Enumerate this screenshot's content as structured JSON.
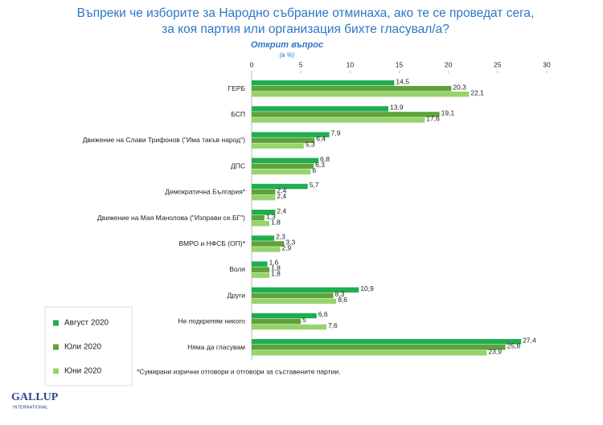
{
  "chart_data": {
    "type": "hbar",
    "title_lines": [
      "Въпреки че изборите за Народно събрание отминаха, ако те се проведат сега,",
      "за коя партия или организация бихте гласувал/а?"
    ],
    "subtitle": "Открит въпрос",
    "unit_label": "(в %)",
    "categories": [
      "ГЕРБ",
      "БСП",
      "Движение на Слави Трифонов (\"Има такъв народ\")",
      "ДПС",
      "Демократична България*",
      "Движение на Мая Манолова (\"Изправи се.БГ\")",
      "ВМРО и НФСБ (ОП)*",
      "Воля",
      "Други",
      "Не подкрепям никого",
      "Няма да гласувам"
    ],
    "series": [
      {
        "name": "Август 2020",
        "color": "#1fae4f",
        "values": [
          14.5,
          13.9,
          7.9,
          6.8,
          5.7,
          2.4,
          2.3,
          1.6,
          10.9,
          6.6,
          27.4
        ],
        "value_labels": [
          "14,5",
          "13,9",
          "7,9",
          "6,8",
          "5,7",
          "2,4",
          "2,3",
          "1,6",
          "10,9",
          "6,6",
          "27,4"
        ]
      },
      {
        "name": "Юли 2020",
        "color": "#5ea33a",
        "values": [
          20.3,
          19.1,
          6.4,
          6.3,
          2.4,
          1.3,
          3.3,
          1.8,
          8.3,
          5,
          25.8
        ],
        "value_labels": [
          "20,3",
          "19,1",
          "6,4",
          "6,3",
          "2,4",
          "1,3",
          "3,3",
          "1,8",
          "8,3",
          "5",
          "25,8"
        ]
      },
      {
        "name": "Юни 2020",
        "color": "#97d36c",
        "values": [
          22.1,
          17.6,
          5.3,
          6,
          2.4,
          1.8,
          2.9,
          1.8,
          8.6,
          7.6,
          23.9
        ],
        "value_labels": [
          "22,1",
          "17,6",
          "5,3",
          "6",
          "2,4",
          "1,8",
          "2,9",
          "1,8",
          "8,6",
          "7,6",
          "23,9"
        ]
      }
    ],
    "xlim": [
      0,
      30
    ],
    "xticks": [
      0,
      5,
      10,
      15,
      20,
      25,
      30
    ],
    "footnote": "*Сумирани изрични отговори и отговори за съставените партии.",
    "logo": [
      "GALLUP",
      "INTERNATIONAL"
    ]
  }
}
